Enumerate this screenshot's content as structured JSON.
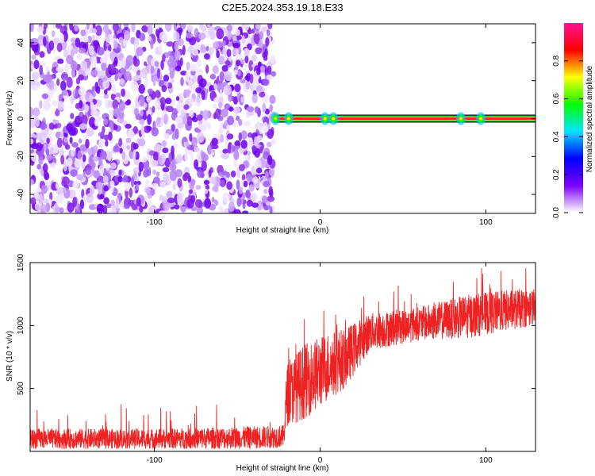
{
  "figure": {
    "title": "C2E5.2024.353.19.18.E33"
  },
  "colorbar": {
    "label": "Normalized spectral amplitude",
    "ticks": [
      "0.0",
      "0.2",
      "0.4",
      "0.6",
      "0.8"
    ],
    "tick_values": [
      0.0,
      0.2,
      0.4,
      0.6,
      0.8
    ],
    "range": [
      0,
      1
    ],
    "colormap": [
      "#ffffff",
      "#7b00ff",
      "#0000ff",
      "#00e5ff",
      "#00ff00",
      "#ffff00",
      "#ff0000",
      "#ff1493"
    ]
  },
  "chart_data": [
    {
      "type": "heatmap",
      "title": "",
      "xlabel": "Height of straight line (km)",
      "ylabel": "Frequency (Hz)",
      "xlim": [
        -175,
        130
      ],
      "ylim": [
        -50,
        50
      ],
      "xticks": [
        -100,
        0,
        100
      ],
      "yticks": [
        -40,
        -20,
        0,
        20,
        40
      ],
      "noise_region_x": [
        -175,
        -28
      ],
      "peak_band": {
        "x_start": -28,
        "x_end": 130,
        "freq": 0,
        "amplitude": 1.0
      },
      "hotspots_x": [
        -27,
        -19,
        3,
        8,
        85,
        97
      ],
      "colors": {
        "noise": "#8a2be2",
        "band_core": "#ff2020",
        "band_edge": "#00c000"
      }
    },
    {
      "type": "line",
      "title": "",
      "xlabel": "Height of straight line (km)",
      "ylabel": "SNR (10 * v/v)",
      "xlim": [
        -175,
        130
      ],
      "ylim": [
        0,
        1500
      ],
      "xticks": [
        -100,
        0,
        100
      ],
      "yticks": [
        500,
        1000,
        1500
      ],
      "series": [
        {
          "color": "#ee2222",
          "envelope": [
            {
              "x": -175,
              "lo": 20,
              "hi": 180
            },
            {
              "x": -100,
              "lo": 20,
              "hi": 180
            },
            {
              "x": -40,
              "lo": 20,
              "hi": 200
            },
            {
              "x": -22,
              "lo": 30,
              "hi": 210
            },
            {
              "x": -20,
              "lo": 200,
              "hi": 700
            },
            {
              "x": -10,
              "lo": 250,
              "hi": 850
            },
            {
              "x": 5,
              "lo": 400,
              "hi": 950
            },
            {
              "x": 15,
              "lo": 500,
              "hi": 980
            },
            {
              "x": 30,
              "lo": 800,
              "hi": 1100
            },
            {
              "x": 60,
              "lo": 880,
              "hi": 1150
            },
            {
              "x": 90,
              "lo": 900,
              "hi": 1250
            },
            {
              "x": 110,
              "lo": 950,
              "hi": 1280
            },
            {
              "x": 130,
              "lo": 1000,
              "hi": 1300
            }
          ]
        }
      ]
    }
  ]
}
